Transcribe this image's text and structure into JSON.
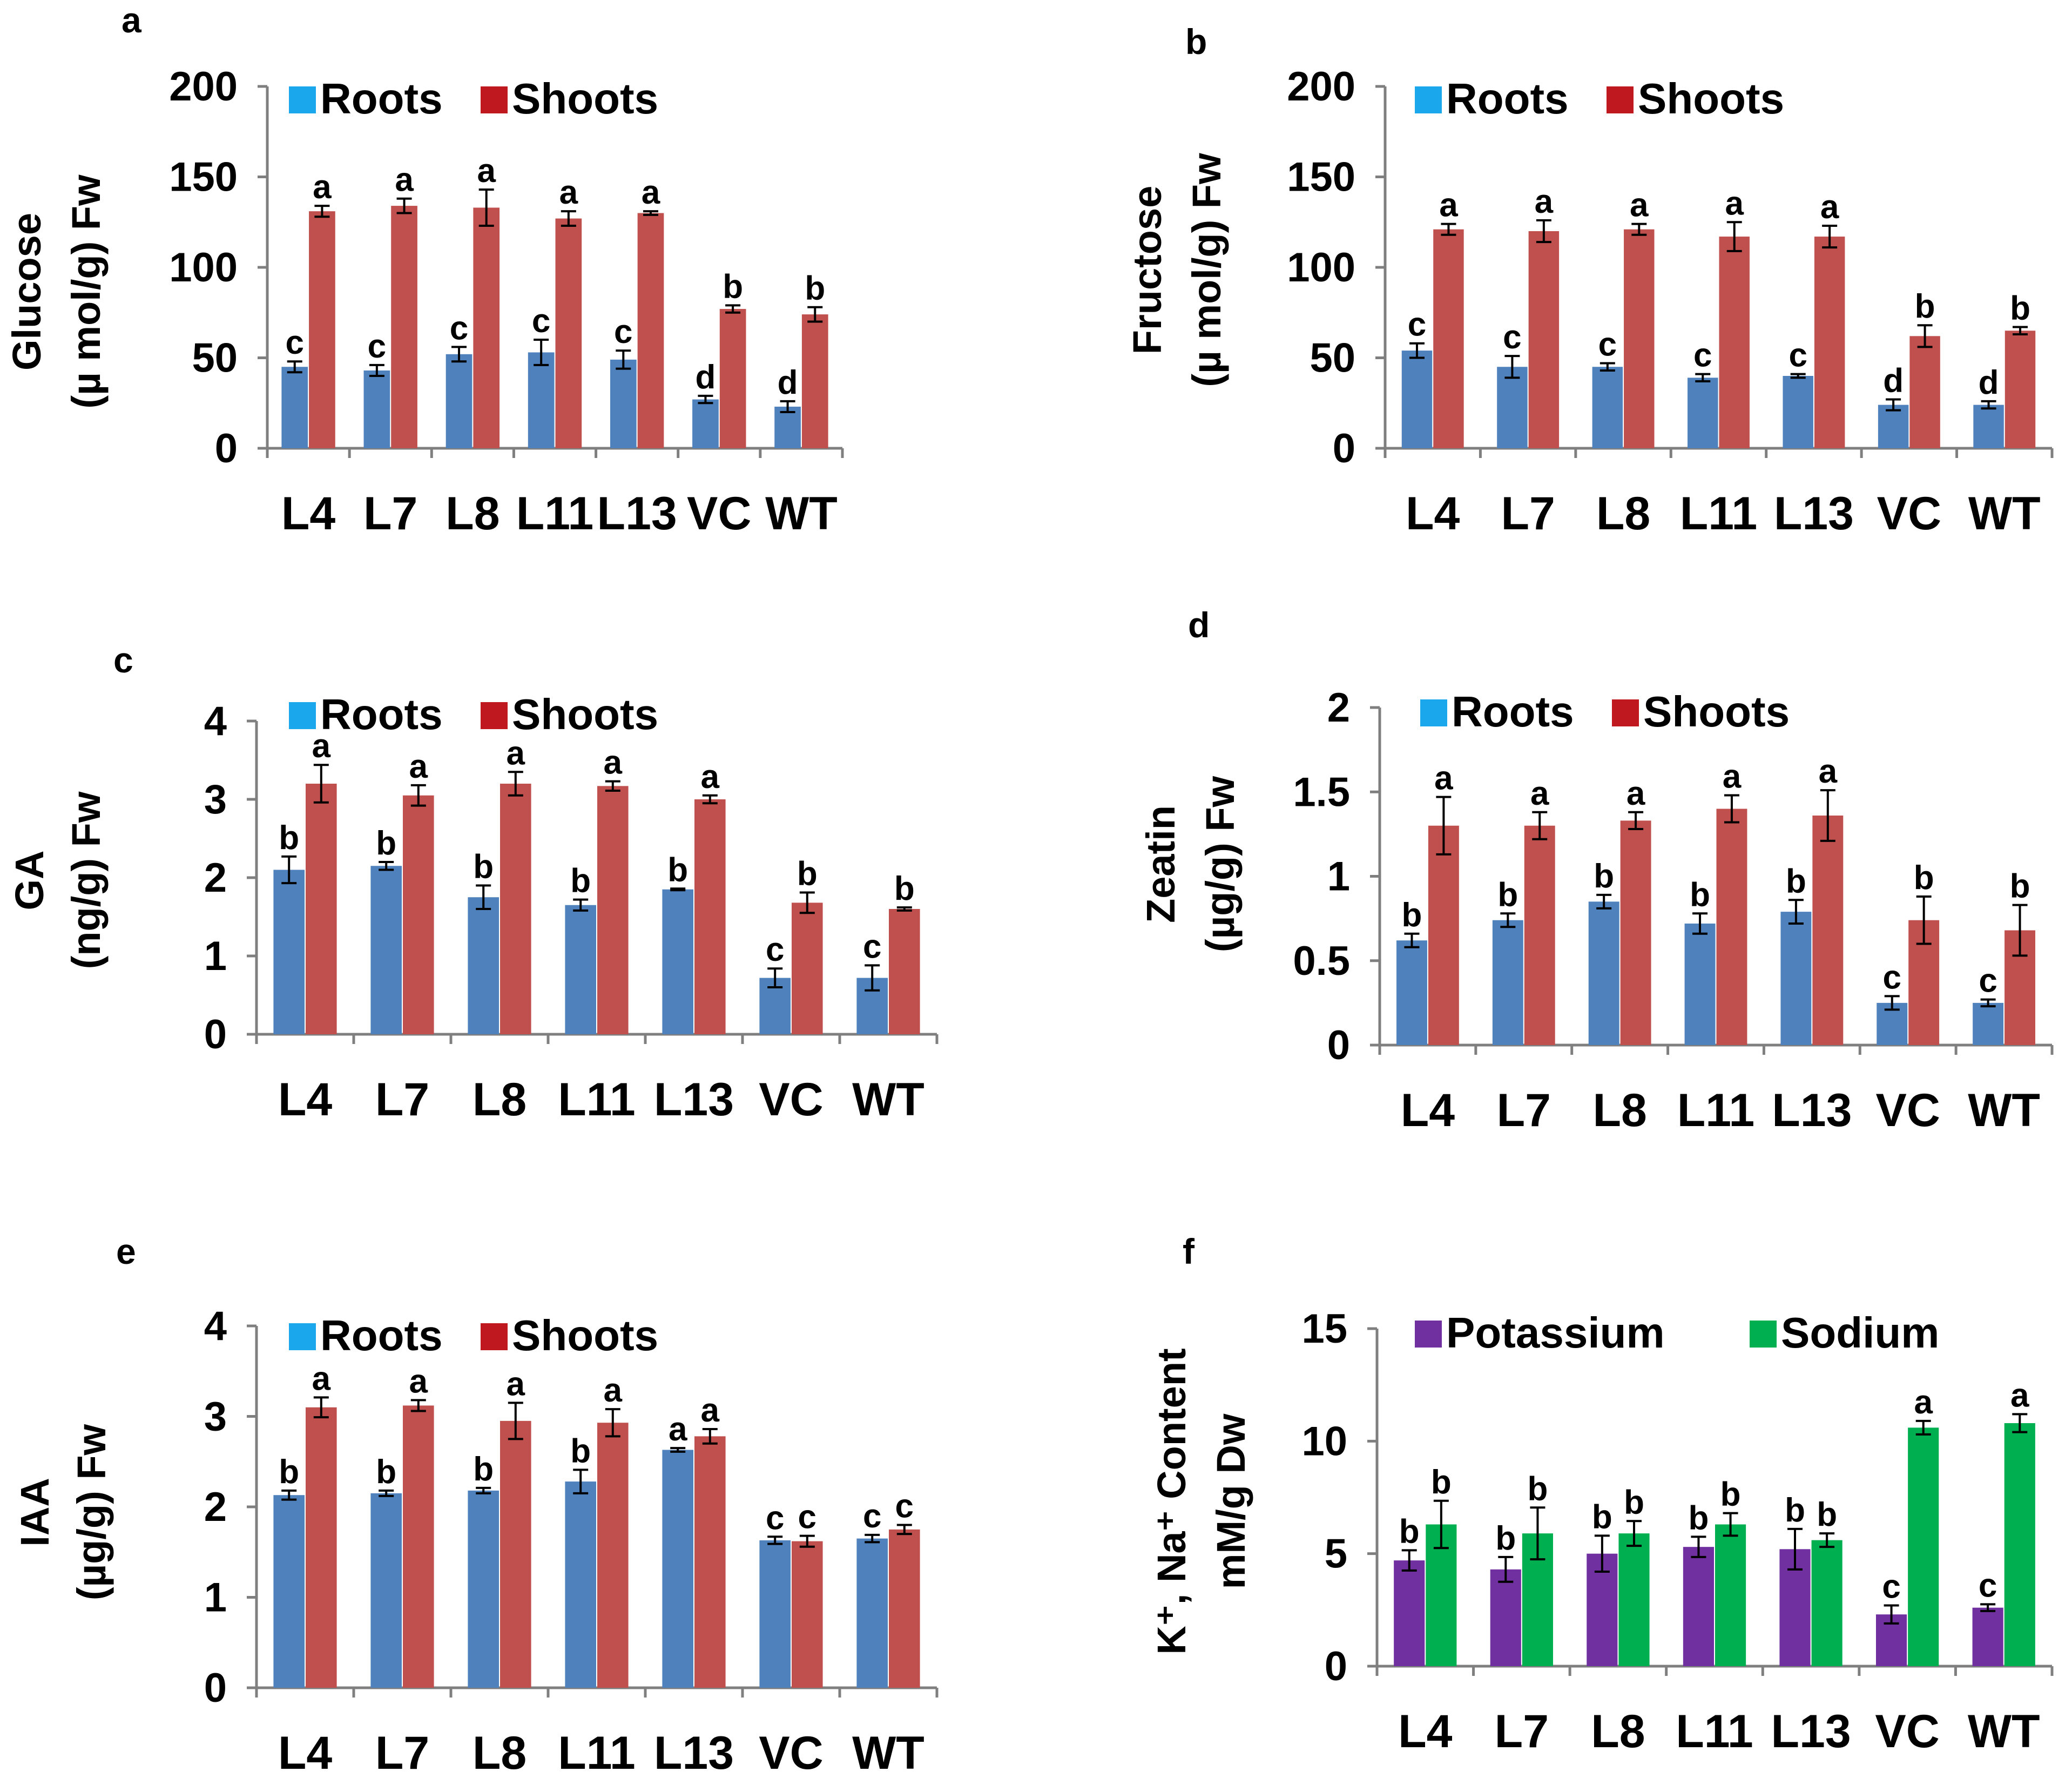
{
  "colors": {
    "roots_legend": "#1aa7ec",
    "shoots_legend": "#c0181f",
    "roots_bar": "#4f81bd",
    "shoots_bar": "#c0504d",
    "potassium": "#7030a0",
    "sodium": "#00b050"
  },
  "chart_data": [
    {
      "panel": "a",
      "type": "bar",
      "ylabel_line1": "Glucose",
      "ylabel_line2": "(µ mol/g) Fw",
      "ylim": [
        0,
        200
      ],
      "yticks": [
        "0",
        "50",
        "100",
        "150",
        "200"
      ],
      "categories": [
        "L4",
        "L7",
        "L8",
        "L11",
        "L13",
        "VC",
        "WT"
      ],
      "series": [
        {
          "name": "Roots",
          "values": [
            45,
            43,
            52,
            53,
            49,
            27,
            23
          ],
          "errors": [
            3,
            3,
            4,
            7,
            5,
            2,
            3
          ],
          "labels": [
            "c",
            "c",
            "c",
            "c",
            "c",
            "d",
            "d"
          ]
        },
        {
          "name": "Shoots",
          "values": [
            131,
            134,
            133,
            127,
            130,
            77,
            74
          ],
          "errors": [
            3,
            4,
            10,
            4,
            1,
            2,
            4
          ],
          "labels": [
            "a",
            "a",
            "a",
            "a",
            "a",
            "b",
            "b"
          ]
        }
      ]
    },
    {
      "panel": "b",
      "type": "bar",
      "ylabel_line1": "Fructose",
      "ylabel_line2": "(µ mol/g) Fw",
      "ylim": [
        0,
        200
      ],
      "yticks": [
        "0",
        "50",
        "100",
        "150",
        "200"
      ],
      "categories": [
        "L4",
        "L7",
        "L8",
        "L11",
        "L13",
        "VC",
        "WT"
      ],
      "series": [
        {
          "name": "Roots",
          "values": [
            54,
            45,
            45,
            39,
            40,
            24,
            24
          ],
          "errors": [
            4,
            6,
            2,
            2,
            1,
            3,
            2
          ],
          "labels": [
            "c",
            "c",
            "c",
            "c",
            "c",
            "d",
            "d"
          ]
        },
        {
          "name": "Shoots",
          "values": [
            121,
            120,
            121,
            117,
            117,
            62,
            65
          ],
          "errors": [
            3,
            6,
            3,
            8,
            6,
            6,
            2
          ],
          "labels": [
            "a",
            "a",
            "a",
            "a",
            "a",
            "b",
            "b"
          ]
        }
      ]
    },
    {
      "panel": "c",
      "type": "bar",
      "ylabel_line1": "GA",
      "ylabel_line2": "(ng/g) Fw",
      "ylim": [
        0,
        4
      ],
      "yticks": [
        "0",
        "1",
        "2",
        "3",
        "4"
      ],
      "categories": [
        "L4",
        "L7",
        "L8",
        "L11",
        "L13",
        "VC",
        "WT"
      ],
      "series": [
        {
          "name": "Roots",
          "values": [
            2.1,
            2.15,
            1.75,
            1.65,
            1.85,
            0.72,
            0.72
          ],
          "errors": [
            0.17,
            0.05,
            0.15,
            0.07,
            0.01,
            0.12,
            0.16
          ],
          "labels": [
            "b",
            "b",
            "b",
            "b",
            "b",
            "c",
            "c"
          ]
        },
        {
          "name": "Shoots",
          "values": [
            3.2,
            3.05,
            3.2,
            3.17,
            3.0,
            1.68,
            1.6
          ],
          "errors": [
            0.24,
            0.13,
            0.15,
            0.06,
            0.05,
            0.13,
            0.02
          ],
          "labels": [
            "a",
            "a",
            "a",
            "a",
            "a",
            "b",
            "b"
          ]
        }
      ]
    },
    {
      "panel": "d",
      "type": "bar",
      "ylabel_line1": "Zeatin",
      "ylabel_line2": "(µg/g) Fw",
      "ylim": [
        0,
        2
      ],
      "yticks": [
        "0",
        "0.5",
        "1",
        "1.5",
        "2"
      ],
      "categories": [
        "L4",
        "L7",
        "L8",
        "L11",
        "L13",
        "VC",
        "WT"
      ],
      "series": [
        {
          "name": "Roots",
          "values": [
            0.62,
            0.74,
            0.85,
            0.72,
            0.79,
            0.25,
            0.25
          ],
          "errors": [
            0.04,
            0.04,
            0.04,
            0.06,
            0.07,
            0.04,
            0.02
          ],
          "labels": [
            "b",
            "b",
            "b",
            "b",
            "b",
            "c",
            "c"
          ]
        },
        {
          "name": "Shoots",
          "values": [
            1.3,
            1.3,
            1.33,
            1.4,
            1.36,
            0.74,
            0.68
          ],
          "errors": [
            0.17,
            0.08,
            0.05,
            0.08,
            0.15,
            0.14,
            0.15
          ],
          "labels": [
            "a",
            "a",
            "a",
            "a",
            "a",
            "b",
            "b"
          ]
        }
      ]
    },
    {
      "panel": "e",
      "type": "bar",
      "ylabel_line1": "IAA",
      "ylabel_line2": "(µg/g) Fw",
      "ylim": [
        0,
        4
      ],
      "yticks": [
        "0",
        "1",
        "2",
        "3",
        "4"
      ],
      "categories": [
        "L4",
        "L7",
        "L8",
        "L11",
        "L13",
        "VC",
        "WT"
      ],
      "series": [
        {
          "name": "Roots",
          "values": [
            2.13,
            2.15,
            2.18,
            2.28,
            2.63,
            1.63,
            1.65
          ],
          "errors": [
            0.05,
            0.03,
            0.03,
            0.13,
            0.02,
            0.04,
            0.04
          ],
          "labels": [
            "b",
            "b",
            "b",
            "b",
            "a",
            "c",
            "c"
          ]
        },
        {
          "name": "Shoots",
          "values": [
            3.1,
            3.12,
            2.95,
            2.93,
            2.78,
            1.62,
            1.75
          ],
          "errors": [
            0.11,
            0.06,
            0.2,
            0.15,
            0.08,
            0.06,
            0.05
          ],
          "labels": [
            "a",
            "a",
            "a",
            "a",
            "a",
            "c",
            "c"
          ]
        }
      ]
    },
    {
      "panel": "f",
      "type": "bar",
      "ylabel_line1": "K⁺, Na⁺ Content",
      "ylabel_line2": "mM/g Dw",
      "ylim": [
        0,
        15
      ],
      "yticks": [
        "0",
        "5",
        "10",
        "15"
      ],
      "categories": [
        "L4",
        "L7",
        "L8",
        "L11",
        "L13",
        "VC",
        "WT"
      ],
      "series": [
        {
          "name": "Potassium",
          "values": [
            4.7,
            4.3,
            5.0,
            5.3,
            5.2,
            2.3,
            2.6
          ],
          "errors": [
            0.45,
            0.55,
            0.8,
            0.45,
            0.9,
            0.4,
            0.15
          ],
          "labels": [
            "b",
            "b",
            "b",
            "b",
            "b",
            "c",
            "c"
          ]
        },
        {
          "name": "Sodium",
          "values": [
            6.3,
            5.9,
            5.9,
            6.3,
            5.6,
            10.6,
            10.8
          ],
          "errors": [
            1.05,
            1.15,
            0.55,
            0.5,
            0.3,
            0.3,
            0.4
          ],
          "labels": [
            "b",
            "b",
            "b",
            "b",
            "b",
            "a",
            "a"
          ]
        }
      ]
    }
  ]
}
